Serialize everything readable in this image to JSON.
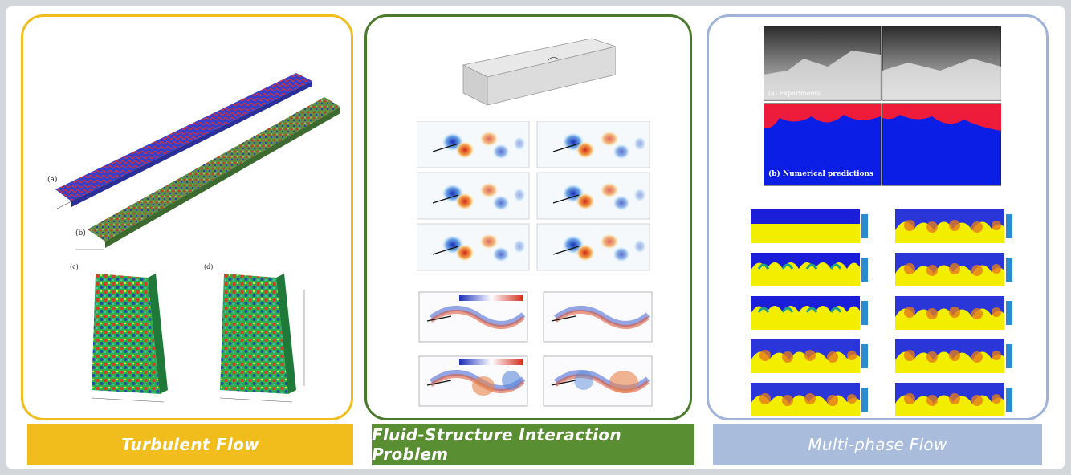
{
  "captions": {
    "turbulent": "Turbulent Flow",
    "fsi": "Fluid-Structure Interaction Problem",
    "multiphase": "Multi-phase Flow"
  },
  "turbulent_figure": {
    "top_labels": [
      "(a)",
      "(b)"
    ],
    "bottom_labels": [
      "(c)",
      "(d)"
    ]
  },
  "multiphase_figure": {
    "experiment_label": "(a) Experiments",
    "numerical_label": "(b) Numerical predictions"
  },
  "colors": {
    "turbulent_accent": "#f0bd1d",
    "fsi_accent": "#4a7a2c",
    "multiphase_accent": "#9fb3d8"
  }
}
